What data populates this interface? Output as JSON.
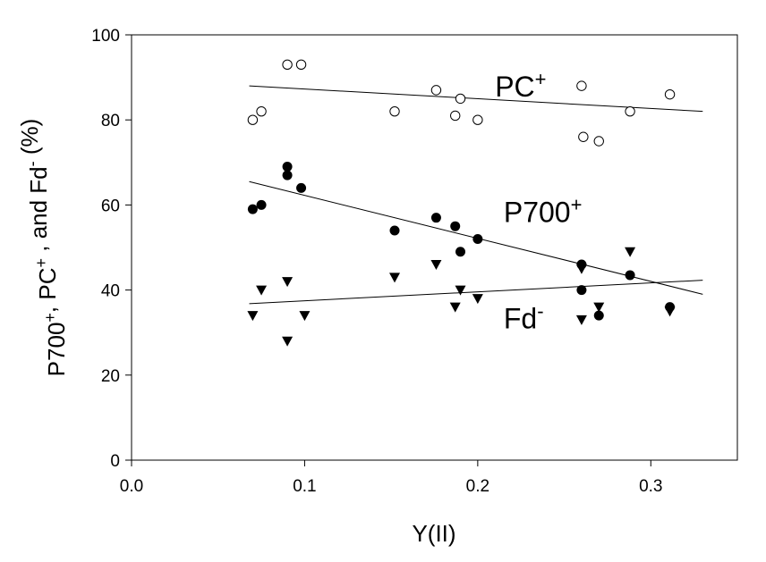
{
  "chart_data": {
    "type": "scatter",
    "xlabel": "Y(II)",
    "ylabel": {
      "parts": [
        {
          "text": "P700",
          "sup": "+"
        },
        {
          "text": ", PC",
          "sup": "+"
        },
        {
          "text": " , and Fd",
          "sup": "-"
        },
        {
          "text": " (%)",
          "sup": ""
        }
      ]
    },
    "xlim": [
      0,
      0.35
    ],
    "ylim": [
      0,
      100
    ],
    "xticks": [
      0.0,
      0.1,
      0.2,
      0.3
    ],
    "xtick_labels": [
      "0.0",
      "0.1",
      "0.2",
      "0.3"
    ],
    "yticks": [
      0,
      20,
      40,
      60,
      80,
      100
    ],
    "ytick_labels": [
      "0",
      "20",
      "40",
      "60",
      "80",
      "100"
    ],
    "grid": false,
    "series": [
      {
        "name": "PC",
        "name_sup": "+",
        "marker": "open-circle",
        "label_pos": [
          0.21,
          85.5
        ],
        "points": [
          [
            0.07,
            80
          ],
          [
            0.075,
            82
          ],
          [
            0.09,
            93
          ],
          [
            0.098,
            93
          ],
          [
            0.152,
            82
          ],
          [
            0.176,
            87
          ],
          [
            0.187,
            81
          ],
          [
            0.19,
            85
          ],
          [
            0.2,
            80
          ],
          [
            0.26,
            88
          ],
          [
            0.261,
            76
          ],
          [
            0.27,
            75
          ],
          [
            0.288,
            82
          ],
          [
            0.311,
            86
          ]
        ],
        "fit": [
          [
            0.068,
            88
          ],
          [
            0.33,
            82
          ]
        ]
      },
      {
        "name": "P700",
        "name_sup": "+",
        "marker": "filled-circle",
        "label_pos": [
          0.215,
          56
        ],
        "points": [
          [
            0.07,
            59
          ],
          [
            0.075,
            60
          ],
          [
            0.09,
            69
          ],
          [
            0.09,
            67
          ],
          [
            0.098,
            64
          ],
          [
            0.152,
            54
          ],
          [
            0.176,
            57
          ],
          [
            0.187,
            55
          ],
          [
            0.19,
            49
          ],
          [
            0.2,
            52
          ],
          [
            0.26,
            46
          ],
          [
            0.26,
            40
          ],
          [
            0.27,
            34
          ],
          [
            0.288,
            43.5
          ],
          [
            0.311,
            36
          ]
        ],
        "fit": [
          [
            0.068,
            65.5
          ],
          [
            0.33,
            39
          ]
        ]
      },
      {
        "name": "Fd",
        "name_sup": "-",
        "marker": "filled-triangle-down",
        "label_pos": [
          0.215,
          31
        ],
        "points": [
          [
            0.07,
            34
          ],
          [
            0.075,
            40
          ],
          [
            0.09,
            42
          ],
          [
            0.09,
            28
          ],
          [
            0.1,
            34
          ],
          [
            0.152,
            43
          ],
          [
            0.176,
            46
          ],
          [
            0.187,
            36
          ],
          [
            0.19,
            40
          ],
          [
            0.2,
            38
          ],
          [
            0.26,
            33
          ],
          [
            0.26,
            45
          ],
          [
            0.27,
            36
          ],
          [
            0.288,
            49
          ],
          [
            0.311,
            35
          ]
        ],
        "fit": [
          [
            0.068,
            36.8
          ],
          [
            0.33,
            42.3
          ]
        ]
      }
    ]
  }
}
